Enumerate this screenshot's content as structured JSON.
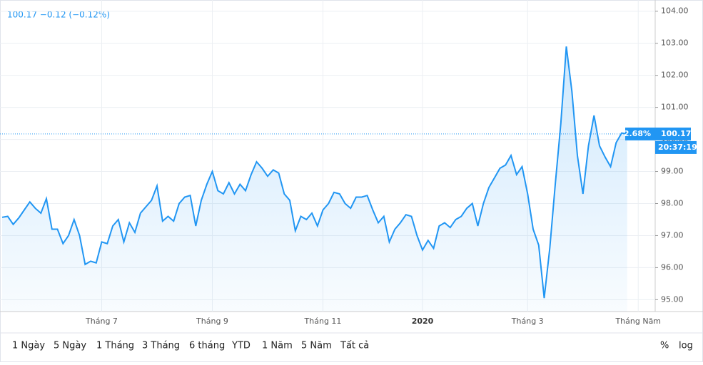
{
  "chart_data": {
    "type": "line",
    "header": "100.17 −0.12 (−0.12%)",
    "categories": [
      null,
      null,
      null,
      null,
      null,
      null,
      null,
      null,
      null,
      null,
      null,
      null,
      null,
      null,
      null,
      null,
      null,
      null,
      "Tháng 7",
      null,
      null,
      null,
      null,
      null,
      null,
      null,
      null,
      null,
      null,
      null,
      null,
      null,
      null,
      null,
      null,
      null,
      null,
      null,
      "Tháng 9",
      null,
      null,
      null,
      null,
      null,
      null,
      null,
      null,
      null,
      null,
      null,
      null,
      null,
      null,
      null,
      null,
      null,
      null,
      null,
      "Tháng 11",
      null,
      null,
      null,
      null,
      null,
      null,
      null,
      null,
      null,
      null,
      null,
      null,
      null,
      null,
      null,
      null,
      null,
      "2020",
      null,
      null,
      null,
      null,
      null,
      null,
      null,
      null,
      null,
      null,
      null,
      null,
      null,
      null,
      null,
      null,
      null,
      null,
      "Tháng 3",
      null,
      null,
      null,
      null,
      null,
      null,
      null,
      null,
      null,
      null,
      null,
      null,
      null,
      null,
      null,
      null,
      null,
      null,
      null,
      "Tháng Năm"
    ],
    "series": [
      {
        "name": "price",
        "color": "#2196f3",
        "values": [
          97.57,
          97.6,
          97.35,
          97.55,
          97.8,
          98.05,
          97.85,
          97.7,
          98.15,
          97.2,
          97.2,
          96.75,
          97.0,
          97.5,
          97.0,
          96.1,
          96.2,
          96.15,
          96.8,
          96.75,
          97.3,
          97.5,
          96.8,
          97.4,
          97.1,
          97.7,
          97.9,
          98.1,
          98.55,
          97.45,
          97.6,
          97.45,
          98.0,
          98.2,
          98.25,
          97.3,
          98.1,
          98.6,
          99.0,
          98.4,
          98.3,
          98.65,
          98.3,
          98.6,
          98.4,
          98.9,
          99.3,
          99.1,
          98.85,
          99.05,
          98.95,
          98.3,
          98.1,
          97.15,
          97.6,
          97.5,
          97.7,
          97.3,
          97.8,
          98.0,
          98.35,
          98.3,
          98.0,
          97.85,
          98.2,
          98.2,
          98.25,
          97.8,
          97.4,
          97.6,
          96.8,
          97.2,
          97.4,
          97.65,
          97.6,
          97.0,
          96.55,
          96.85,
          96.6,
          97.3,
          97.4,
          97.25,
          97.5,
          97.6,
          97.85,
          98.0,
          97.3,
          98.0,
          98.5,
          98.8,
          99.1,
          99.2,
          99.5,
          98.9,
          99.15,
          98.3,
          97.2,
          96.7,
          95.05,
          96.6,
          98.6,
          100.5,
          102.9,
          101.5,
          99.5,
          98.3,
          99.8,
          100.75,
          99.8,
          99.45,
          99.15,
          99.9,
          100.2,
          100.17,
          null,
          null
        ]
      }
    ],
    "ylim": [
      94.63,
      104.35
    ],
    "yticks": [
      {
        "value": 95,
        "label": "95.00"
      },
      {
        "value": 96,
        "label": "96.00"
      },
      {
        "value": 97,
        "label": "97.00"
      },
      {
        "value": 98,
        "label": "98.00"
      },
      {
        "value": 99,
        "label": "99.00"
      },
      {
        "value": 100,
        "label": "100.00"
      },
      {
        "value": 101,
        "label": "101.00"
      },
      {
        "value": 102,
        "label": "102.00"
      },
      {
        "value": 103,
        "label": "103.00"
      },
      {
        "value": 104,
        "label": "104.00"
      }
    ],
    "change_label": "2.68%",
    "price_label": "100.17",
    "time_label": "20:37:19",
    "grid": true,
    "toolbar": [
      "1 Ngày",
      "5 Ngày",
      "1 Tháng",
      "3 Tháng",
      "6 tháng",
      "YTD",
      "1 Năm",
      "5 Năm",
      "Tất cả"
    ],
    "toolbar_right": [
      "%",
      "log"
    ]
  }
}
